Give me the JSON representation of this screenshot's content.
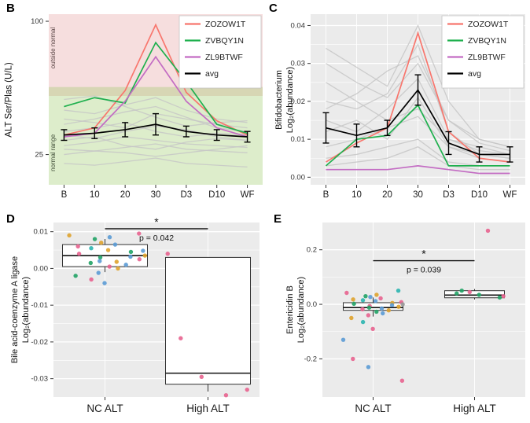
{
  "point_colors": {
    "blue": "#5b9bd5",
    "orange": "#dfa32d",
    "green": "#21a366",
    "pink": "#e8638f",
    "purple": "#9e6ec8",
    "teal": "#2bb5b0",
    "gray": "#9a9a9a"
  },
  "chart_data": [
    {
      "id": "B",
      "panel_label": "B",
      "type": "line",
      "y_title_line1": "ALT Ser/Plas (U/L)",
      "categories": [
        "B",
        "10",
        "20",
        "30",
        "D3",
        "D10",
        "WF"
      ],
      "ylim": [
        8,
        104
      ],
      "yticks": [
        {
          "v": 25,
          "label": "25"
        },
        {
          "v": 100,
          "label": "100"
        }
      ],
      "plot_background": "#ffffff",
      "grid": false,
      "legend_position": "top-right",
      "bands": [
        {
          "name": "outside-normal",
          "label": "outside normal",
          "from": 58,
          "to": 104,
          "color": "rgba(219,128,128,0.26)",
          "label_v": 85,
          "label_color": "#584444"
        },
        {
          "name": "normal-range",
          "label": "normal range",
          "from": 8,
          "to": 63,
          "color": "rgba(141,196,82,0.30)",
          "label_v": 26,
          "label_color": "#42503a"
        }
      ],
      "background_series": [
        [
          56,
          58,
          52,
          46,
          41,
          43,
          44
        ],
        [
          30,
          32,
          35,
          33,
          31,
          30,
          29
        ],
        [
          45,
          43,
          40,
          48,
          45,
          42,
          40
        ],
        [
          28,
          27,
          29,
          31,
          28,
          27,
          26
        ],
        [
          38,
          40,
          43,
          38,
          35,
          37,
          36
        ],
        [
          50,
          48,
          53,
          57,
          50,
          45,
          43
        ],
        [
          33,
          35,
          30,
          28,
          32,
          34,
          33
        ],
        [
          42,
          45,
          49,
          52,
          46,
          40,
          38
        ],
        [
          25,
          27,
          26,
          24,
          26,
          28,
          30
        ],
        [
          36,
          34,
          38,
          41,
          39,
          35,
          33
        ],
        [
          20,
          19,
          21,
          23,
          20,
          19,
          18
        ]
      ],
      "series": [
        {
          "name": "ZOZOW1T",
          "color": "#f8766d",
          "values": [
            36,
            40,
            61,
            98,
            60,
            44,
            36
          ]
        },
        {
          "name": "ZVBQY1N",
          "color": "#1fb04e",
          "values": [
            52,
            57,
            54,
            88,
            66,
            42,
            37
          ]
        },
        {
          "name": "ZL9BTWF",
          "color": "#c36cc3",
          "values": [
            35,
            37,
            55,
            80,
            55,
            40,
            35
          ]
        },
        {
          "name": "avg",
          "color": "#000000",
          "values": [
            36,
            37,
            39,
            42,
            38,
            36,
            35
          ],
          "errors": [
            3,
            3,
            4,
            6,
            3,
            3,
            3
          ]
        }
      ]
    },
    {
      "id": "C",
      "panel_label": "C",
      "type": "line",
      "y_title_line1": "Bifidobacterium",
      "y_title_line2": "Log₂(abundance)",
      "categories": [
        "B",
        "10",
        "20",
        "30",
        "D3",
        "D10",
        "WF"
      ],
      "ylim": [
        -0.002,
        0.043
      ],
      "yticks": [
        {
          "v": 0,
          "label": "0.00"
        },
        {
          "v": 0.01,
          "label": "0.01"
        },
        {
          "v": 0.02,
          "label": "0.02"
        },
        {
          "v": 0.03,
          "label": "0.03"
        },
        {
          "v": 0.04,
          "label": "0.04"
        }
      ],
      "plot_background": "#ebebeb",
      "grid": true,
      "legend_position": "top-right",
      "background_series": [
        [
          0.03,
          0.025,
          0.021,
          0.03,
          0.015,
          0.01,
          0.008
        ],
        [
          0.015,
          0.012,
          0.018,
          0.026,
          0.01,
          0.008,
          0.006
        ],
        [
          0.008,
          0.01,
          0.013,
          0.016,
          0.008,
          0.005,
          0.004
        ],
        [
          0.02,
          0.018,
          0.022,
          0.035,
          0.012,
          0.006,
          0.005
        ],
        [
          0.005,
          0.006,
          0.008,
          0.01,
          0.004,
          0.003,
          0.003
        ],
        [
          0.034,
          0.029,
          0.024,
          0.04,
          0.02,
          0.01,
          0.008
        ],
        [
          0.012,
          0.015,
          0.01,
          0.021,
          0.008,
          0.006,
          0.005
        ],
        [
          0.025,
          0.02,
          0.015,
          0.018,
          0.01,
          0.007,
          0.006
        ],
        [
          0.003,
          0.004,
          0.005,
          0.008,
          0.003,
          0.002,
          0.002
        ],
        [
          0.018,
          0.022,
          0.028,
          0.032,
          0.015,
          0.009,
          0.007
        ]
      ],
      "series": [
        {
          "name": "ZOZOW1T",
          "color": "#f8766d",
          "values": [
            0.004,
            0.009,
            0.013,
            0.038,
            0.012,
            0.005,
            0.004
          ]
        },
        {
          "name": "ZVBQY1N",
          "color": "#1fb04e",
          "values": [
            0.003,
            0.01,
            0.011,
            0.019,
            0.003,
            0.003,
            0.003
          ]
        },
        {
          "name": "ZL9BTWF",
          "color": "#c36cc3",
          "values": [
            0.002,
            0.002,
            0.002,
            0.003,
            0.002,
            0.001,
            0.001
          ]
        },
        {
          "name": "avg",
          "color": "#000000",
          "values": [
            0.013,
            0.011,
            0.013,
            0.023,
            0.009,
            0.006,
            0.006
          ],
          "errors": [
            0.004,
            0.003,
            0.002,
            0.004,
            0.003,
            0.002,
            0.002
          ]
        }
      ]
    },
    {
      "id": "D",
      "panel_label": "D",
      "type": "box",
      "y_title_line1": "Bile acid-coenzyme A ligase",
      "y_title_line2": "Log₂(abundance)",
      "categories": [
        "NC ALT",
        "High ALT"
      ],
      "ylim": [
        -0.035,
        0.0125
      ],
      "yticks": [
        {
          "v": 0.01,
          "label": "0.01"
        },
        {
          "v": 0,
          "label": "0.00"
        },
        {
          "v": -0.01,
          "label": "-0.01"
        },
        {
          "v": -0.02,
          "label": "-0.02"
        },
        {
          "v": -0.03,
          "label": "-0.03"
        }
      ],
      "plot_background": "#ebebeb",
      "grid": true,
      "boxes": [
        {
          "category": "NC ALT",
          "q1": 0.0005,
          "median": 0.0035,
          "q3": 0.0065,
          "whisker_low": -0.001,
          "whisker_high": 0.008
        },
        {
          "category": "High ALT",
          "q1": -0.0315,
          "median": -0.0285,
          "q3": 0.003,
          "whisker_low": -0.0335,
          "whisker_high": 0.003
        }
      ],
      "points": [
        [
          0,
          0.0095,
          "pink"
        ],
        [
          0,
          0.009,
          "orange"
        ],
        [
          0,
          0.0085,
          "blue"
        ],
        [
          0,
          0.008,
          "green"
        ],
        [
          0,
          0.007,
          "orange"
        ],
        [
          0,
          0.0065,
          "blue"
        ],
        [
          0,
          0.006,
          "pink"
        ],
        [
          0,
          0.0055,
          "teal"
        ],
        [
          0,
          0.005,
          "orange"
        ],
        [
          0,
          0.0048,
          "blue"
        ],
        [
          0,
          0.0045,
          "green"
        ],
        [
          0,
          0.004,
          "pink"
        ],
        [
          0,
          0.0035,
          "orange"
        ],
        [
          0,
          0.0032,
          "blue"
        ],
        [
          0,
          0.003,
          "green"
        ],
        [
          0,
          0.0025,
          "pink"
        ],
        [
          0,
          0.002,
          "blue"
        ],
        [
          0,
          0.0018,
          "orange"
        ],
        [
          0,
          0.0015,
          "green"
        ],
        [
          0,
          0.001,
          "blue"
        ],
        [
          0,
          0.0005,
          "pink"
        ],
        [
          0,
          0,
          "orange"
        ],
        [
          0,
          -0.0012,
          "blue"
        ],
        [
          0,
          -0.002,
          "green"
        ],
        [
          0,
          -0.003,
          "pink"
        ],
        [
          0,
          -0.004,
          "blue"
        ],
        [
          1,
          0.004,
          "pink"
        ],
        [
          1,
          -0.019,
          "pink"
        ],
        [
          1,
          -0.0295,
          "pink"
        ],
        [
          1,
          -0.033,
          "pink"
        ],
        [
          1,
          -0.0345,
          "pink"
        ]
      ],
      "significance": {
        "star": "*",
        "p_label": "p = 0.042",
        "bar_v": 0.0108
      }
    },
    {
      "id": "E",
      "panel_label": "E",
      "type": "box",
      "y_title_line1": "Entericidin B",
      "y_title_line2": "Log₂(abundance)",
      "categories": [
        "NC ALT",
        "High ALT"
      ],
      "ylim": [
        -0.34,
        0.3
      ],
      "yticks": [
        {
          "v": 0.2,
          "label": "0.2"
        },
        {
          "v": 0,
          "label": "0.0"
        },
        {
          "v": -0.2,
          "label": "-0.2"
        }
      ],
      "plot_background": "#ebebeb",
      "grid": true,
      "boxes": [
        {
          "category": "NC ALT",
          "q1": -0.022,
          "median": -0.012,
          "q3": 0.006,
          "whisker_low": -0.045,
          "whisker_high": 0.025
        },
        {
          "category": "High ALT",
          "q1": 0.024,
          "median": 0.034,
          "q3": 0.05,
          "whisker_low": 0.018,
          "whisker_high": 0.056
        }
      ],
      "points": [
        [
          0,
          0.05,
          "teal"
        ],
        [
          0,
          0.042,
          "pink"
        ],
        [
          0,
          0.035,
          "orange"
        ],
        [
          0,
          0.03,
          "green"
        ],
        [
          0,
          0.027,
          "blue"
        ],
        [
          0,
          0.022,
          "pink"
        ],
        [
          0,
          0.018,
          "orange"
        ],
        [
          0,
          0.015,
          "teal"
        ],
        [
          0,
          0.012,
          "blue"
        ],
        [
          0,
          0.008,
          "pink"
        ],
        [
          0,
          0.005,
          "orange"
        ],
        [
          0,
          0.002,
          "green"
        ],
        [
          0,
          0,
          "gray"
        ],
        [
          0,
          -0.003,
          "blue"
        ],
        [
          0,
          -0.006,
          "pink"
        ],
        [
          0,
          -0.009,
          "orange"
        ],
        [
          0,
          -0.012,
          "green"
        ],
        [
          0,
          -0.015,
          "blue"
        ],
        [
          0,
          -0.018,
          "pink"
        ],
        [
          0,
          -0.022,
          "orange"
        ],
        [
          0,
          -0.027,
          "green"
        ],
        [
          0,
          -0.033,
          "blue"
        ],
        [
          0,
          -0.04,
          "pink"
        ],
        [
          0,
          -0.05,
          "orange"
        ],
        [
          0,
          -0.065,
          "teal"
        ],
        [
          0,
          -0.09,
          "pink"
        ],
        [
          0,
          -0.13,
          "blue"
        ],
        [
          0,
          -0.2,
          "pink"
        ],
        [
          0,
          -0.23,
          "blue"
        ],
        [
          0,
          -0.28,
          "pink"
        ],
        [
          1,
          0.27,
          "pink"
        ],
        [
          1,
          0.05,
          "green"
        ],
        [
          1,
          0.045,
          "pink"
        ],
        [
          1,
          0.04,
          "green"
        ],
        [
          1,
          0.035,
          "green"
        ],
        [
          1,
          0.03,
          "pink"
        ],
        [
          1,
          0.025,
          "green"
        ]
      ],
      "significance": {
        "star": "*",
        "p_label": "p = 0.039",
        "bar_v": 0.16
      }
    }
  ]
}
